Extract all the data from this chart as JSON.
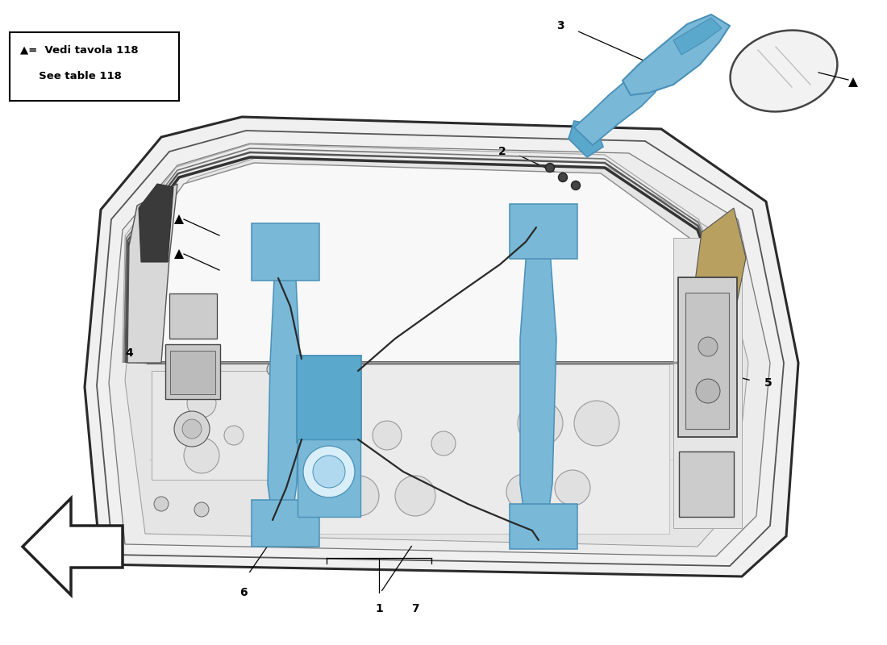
{
  "bg": "#ffffff",
  "door_face": "#f0f0f0",
  "door_edge": "#333333",
  "inner_face": "#e8e8e8",
  "inner_edge": "#666666",
  "blue": "#7ab8d8",
  "blue_dark": "#4a90b8",
  "blue_mid": "#5aa8cc",
  "gray_part": "#cccccc",
  "gray_dark": "#aaaaaa",
  "lw_door": 2.0,
  "lw_inner": 1.2,
  "label_fs": 10,
  "legend_line1": "▲=  Vedi tavola 118",
  "legend_line2": "    See table 118"
}
